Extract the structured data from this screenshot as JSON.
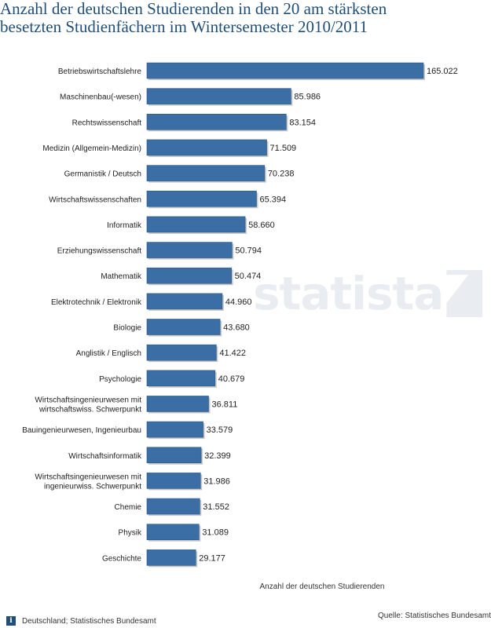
{
  "title_lines": [
    "Anzahl der deutschen Studierenden in den 20 am stärksten",
    "besetzten Studienfächern im Wintersemester 2010/2011"
  ],
  "footer": {
    "info_icon": "info-icon",
    "left": "Deutschland; Statistisches Bundesamt",
    "right": "Quelle: Statistisches Bundesamt"
  },
  "watermark": "statista",
  "colors": {
    "bar": "#3a6ea5",
    "bar_dark": "#2d5a8a",
    "title": "#1f4e79"
  },
  "chart_data": {
    "type": "bar",
    "orientation": "horizontal",
    "categories": [
      "Betriebswirtschaftslehre",
      "Maschinenbau(-wesen)",
      "Rechtswissenschaft",
      "Medizin (Allgemein-Medizin)",
      "Germanistik / Deutsch",
      "Wirtschaftswissenschaften",
      "Informatik",
      "Erziehungswissenschaft",
      "Mathematik",
      "Elektrotechnik / Elektronik",
      "Biologie",
      "Anglistik / Englisch",
      "Psychologie",
      "Wirtschaftsingenieurwesen mit\nwirtschaftswiss. Schwerpunkt",
      "Bauingenieurwesen, Ingenieurbau",
      "Wirtschaftsinformatik",
      "Wirtschaftsingenieurwesen mit\ningenieurwiss. Schwerpunkt",
      "Chemie",
      "Physik",
      "Geschichte"
    ],
    "values": [
      165022,
      85986,
      83154,
      71509,
      70238,
      65394,
      58660,
      50794,
      50474,
      44960,
      43680,
      41422,
      40679,
      36811,
      33579,
      32399,
      31986,
      31552,
      31089,
      29177
    ],
    "value_labels": [
      "165.022",
      "85.986",
      "83.154",
      "71.509",
      "70.238",
      "65.394",
      "58.660",
      "50.794",
      "50.474",
      "44.960",
      "43.680",
      "41.422",
      "40.679",
      "36.811",
      "33.579",
      "32.399",
      "31.986",
      "31.552",
      "31.089",
      "29.177"
    ],
    "xlabel": "Anzahl der deutschen Studierenden",
    "xlim": [
      0,
      165022
    ],
    "grid": false,
    "legend": "none"
  }
}
